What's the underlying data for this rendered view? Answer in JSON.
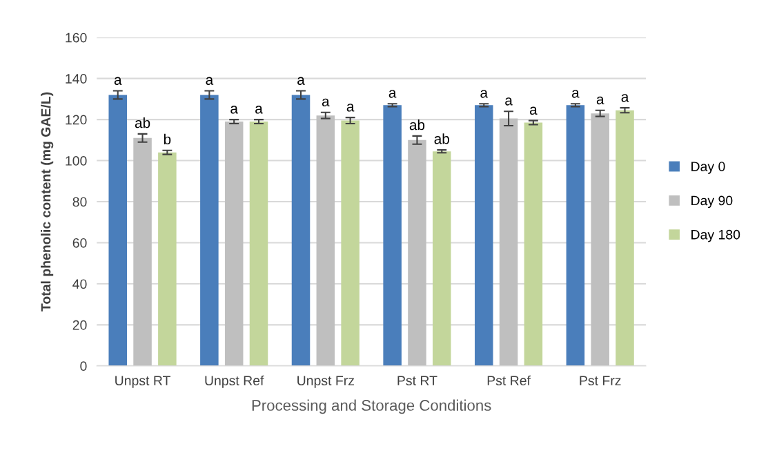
{
  "chart_data": {
    "type": "bar",
    "xlabel": "Processing and Storage Conditions",
    "ylabel": "Total phenolic content (mg GAE/L)",
    "categories": [
      "Unpst RT",
      "Unpst Ref",
      "Unpst Frz",
      "Pst RT",
      "Pst Ref",
      "Pst Frz"
    ],
    "series": [
      {
        "name": "Day 0",
        "color": "#4a7ebb",
        "values": [
          132,
          132,
          132,
          127,
          127,
          127
        ],
        "errors": [
          2,
          2,
          2,
          0.7,
          0.7,
          0.7
        ],
        "value_labels": [
          "a",
          "a",
          "a",
          "a",
          "a",
          "a"
        ]
      },
      {
        "name": "Day 90",
        "color": "#bfbfbf",
        "values": [
          111,
          119,
          122,
          110,
          120.5,
          123
        ],
        "errors": [
          2,
          1,
          1.5,
          2,
          3.5,
          1.5
        ],
        "value_labels": [
          "ab",
          "a",
          "a",
          "ab",
          "a",
          "a"
        ]
      },
      {
        "name": "Day 180",
        "color": "#c3d69b",
        "values": [
          104,
          119,
          119.5,
          104.5,
          118.5,
          124.5
        ],
        "errors": [
          1,
          1,
          1.5,
          0.7,
          1,
          1.2
        ],
        "value_labels": [
          "b",
          "a",
          "a",
          "ab",
          "a",
          "a"
        ]
      }
    ],
    "ylim": [
      0,
      160
    ],
    "yticks": [
      0,
      20,
      40,
      60,
      80,
      100,
      120,
      140,
      160
    ],
    "grid": "y",
    "legend": "right"
  }
}
